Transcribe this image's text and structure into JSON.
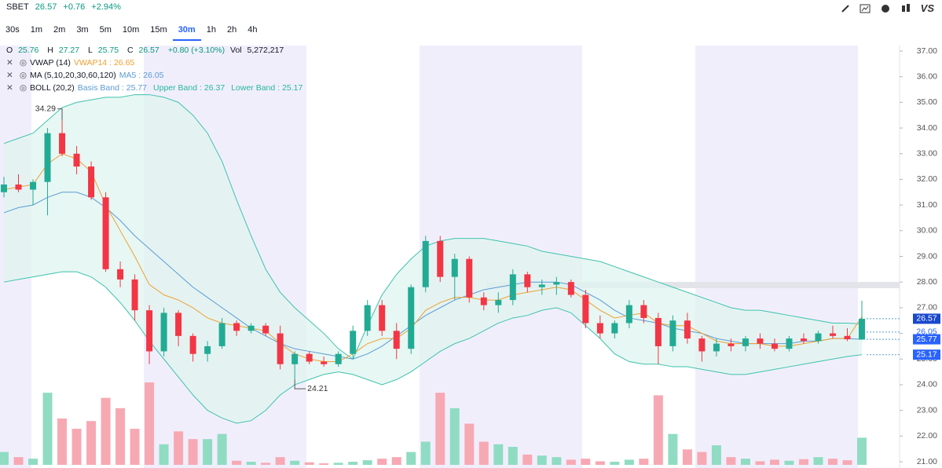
{
  "header": {
    "symbol": "SBET",
    "change": "+0.76",
    "change_pct": "+2.94%",
    "logo": "VS"
  },
  "timeframes": {
    "items": [
      "30s",
      "1m",
      "2m",
      "3m",
      "5m",
      "10m",
      "15m",
      "30m",
      "1h",
      "2h",
      "4h"
    ],
    "active": 7
  },
  "ohlc": {
    "o": "O",
    "h": "H",
    "l": "L",
    "c": "C",
    "change": "+0.80 (+3.10%)",
    "vol": "Vol",
    "vol_text": "5,272,217"
  },
  "indicators": [
    {
      "name": "VWAP (14)",
      "lines": [
        {
          "label": "VWAP14 :",
          "value": 26.65,
          "color": "#f0a030"
        }
      ]
    },
    {
      "name": "MA (5,10,20,30,60,120)",
      "lines": [
        {
          "label": "MA5 :",
          "value": 26.05,
          "color": "#5b9bd5"
        }
      ]
    },
    {
      "name": "BOLL (20,2)",
      "lines": [
        {
          "label": "Basis Band :",
          "value": 25.77,
          "color": "#5b9bd5"
        },
        {
          "label": "Upper Band :",
          "value": 26.37,
          "color": "#26b7a0"
        },
        {
          "label": "Lower Band :",
          "value": 25.17,
          "color": "#26b7a0"
        }
      ]
    }
  ],
  "chart_data": {
    "type": "candlestick",
    "ylim": [
      21,
      37
    ],
    "yticks": [
      {
        "value": 37,
        "label": "37.00"
      },
      {
        "value": 36,
        "label": "36.00"
      },
      {
        "value": 35,
        "label": "35.00"
      },
      {
        "value": 34,
        "label": "34.00"
      },
      {
        "value": 33,
        "label": "33.00"
      },
      {
        "value": 32,
        "label": "32.00"
      },
      {
        "value": 31,
        "label": "31.00"
      },
      {
        "value": 30,
        "label": "30.00"
      },
      {
        "value": 29,
        "label": "29.00"
      },
      {
        "value": 28,
        "label": "28.00"
      },
      {
        "value": 27,
        "label": "27.00"
      },
      {
        "value": 26,
        "label": "26.00"
      },
      {
        "value": 25,
        "label": "25.00"
      },
      {
        "value": 24,
        "label": "24.00"
      },
      {
        "value": 23,
        "label": "23.00"
      },
      {
        "value": 22,
        "label": "22.00"
      },
      {
        "value": 21,
        "label": "21.00"
      }
    ],
    "up_color": "#22ab94",
    "down_color": "#f23645",
    "open": [
      31.5,
      31.8,
      31.6,
      31.9,
      33.8,
      33.0,
      32.5,
      31.3,
      28.5,
      28.1,
      26.9,
      25.3,
      26.8,
      25.9,
      25.2,
      25.5,
      26.4,
      26.1,
      26.3,
      26.0,
      24.8,
      25.2,
      24.9,
      24.8,
      25.2,
      26.1,
      27.1,
      26.1,
      25.4,
      27.8,
      29.6,
      28.2,
      28.9,
      27.4,
      27.1,
      27.3,
      28.3,
      27.8,
      27.9,
      28.0,
      27.5,
      26.4,
      26.0,
      26.4,
      27.1,
      26.6,
      25.5,
      26.5,
      25.8,
      25.3,
      25.6,
      25.5,
      25.8,
      25.6,
      25.4,
      25.8,
      25.7,
      26.0,
      25.9,
      25.76
    ],
    "high": [
      32.1,
      32.2,
      32.0,
      34.0,
      34.29,
      33.3,
      32.7,
      31.5,
      28.8,
      28.3,
      27.1,
      27.0,
      26.9,
      26.0,
      25.7,
      26.6,
      26.5,
      26.4,
      26.4,
      26.3,
      25.3,
      25.3,
      25.1,
      25.3,
      26.3,
      27.3,
      27.3,
      26.4,
      27.9,
      29.8,
      29.8,
      29.1,
      29.0,
      27.6,
      27.6,
      28.5,
      28.4,
      28.1,
      28.2,
      28.1,
      27.7,
      26.7,
      26.5,
      27.3,
      27.3,
      26.8,
      26.7,
      26.8,
      25.9,
      25.8,
      25.8,
      25.9,
      26.0,
      25.8,
      25.9,
      26.0,
      26.1,
      26.3,
      26.2,
      27.27
    ],
    "low": [
      31.3,
      31.5,
      31.0,
      30.6,
      32.9,
      32.2,
      31.2,
      28.4,
      27.8,
      26.5,
      24.8,
      25.1,
      25.5,
      24.9,
      24.9,
      25.4,
      25.9,
      26.0,
      25.9,
      24.6,
      24.21,
      24.8,
      24.7,
      24.7,
      25.0,
      25.9,
      25.9,
      25.0,
      25.2,
      27.6,
      28.0,
      27.3,
      27.2,
      26.9,
      26.8,
      27.1,
      27.6,
      27.5,
      27.5,
      27.4,
      26.2,
      25.8,
      25.8,
      26.2,
      26.4,
      24.8,
      25.3,
      25.6,
      24.9,
      25.1,
      25.3,
      25.3,
      25.4,
      25.3,
      25.3,
      25.6,
      25.6,
      25.8,
      25.7,
      25.75
    ],
    "close": [
      31.8,
      31.6,
      31.9,
      33.8,
      33.0,
      32.5,
      31.3,
      28.5,
      28.1,
      26.9,
      25.3,
      26.8,
      25.9,
      25.2,
      25.5,
      26.4,
      26.1,
      26.3,
      26.0,
      24.8,
      25.2,
      24.9,
      24.8,
      25.2,
      26.1,
      27.1,
      26.1,
      25.4,
      27.8,
      29.6,
      28.2,
      28.9,
      27.4,
      27.1,
      27.3,
      28.3,
      27.8,
      27.9,
      28.0,
      27.5,
      26.4,
      26.0,
      26.4,
      27.1,
      26.6,
      25.5,
      26.5,
      25.8,
      25.3,
      25.6,
      25.5,
      25.8,
      25.6,
      25.4,
      25.8,
      25.7,
      26.0,
      25.9,
      25.77,
      26.57
    ],
    "volume": [
      2500000,
      1500000,
      1200000,
      14000000,
      9000000,
      7000000,
      8500000,
      13000000,
      11000000,
      7000000,
      16000000,
      4000000,
      6500000,
      5000000,
      5000000,
      6000000,
      800000,
      600000,
      400000,
      1500000,
      800000,
      500000,
      300000,
      400000,
      600000,
      900000,
      1200000,
      1500000,
      2500000,
      4500000,
      14000000,
      11000000,
      8000000,
      4500000,
      4000000,
      3500000,
      2000000,
      1800000,
      1500000,
      1000000,
      1200000,
      700000,
      600000,
      1000000,
      1200000,
      13500000,
      6000000,
      3000000,
      2500000,
      3800000,
      1500000,
      1200000,
      700000,
      1000000,
      800000,
      1100000,
      1500000,
      1200000,
      900000,
      5272217
    ],
    "bands": {
      "fill": "#dff4ef",
      "line_color": "#3fc2ad",
      "basis_color": "#5b9bd5",
      "upper": [
        33.4,
        33.6,
        33.8,
        34.3,
        34.8,
        35.0,
        35.1,
        35.2,
        35.2,
        35.3,
        35.3,
        35.2,
        35.0,
        34.5,
        33.8,
        32.7,
        31.2,
        29.8,
        28.5,
        27.6,
        27.0,
        26.5,
        26.0,
        25.4,
        25.0,
        26.3,
        27.5,
        28.3,
        28.9,
        29.4,
        29.6,
        29.7,
        29.7,
        29.7,
        29.6,
        29.5,
        29.4,
        29.2,
        29.1,
        29.0,
        28.9,
        28.8,
        28.6,
        28.4,
        28.2,
        28.0,
        27.8,
        27.6,
        27.4,
        27.2,
        27.0,
        26.9,
        26.9,
        26.8,
        26.7,
        26.6,
        26.5,
        26.4,
        26.4,
        26.37
      ],
      "basis": [
        30.7,
        30.9,
        31.0,
        31.3,
        31.5,
        31.5,
        31.3,
        30.9,
        30.4,
        29.8,
        29.3,
        28.8,
        28.3,
        27.8,
        27.4,
        27.0,
        26.6,
        26.2,
        25.9,
        25.6,
        25.4,
        25.3,
        25.2,
        25.1,
        25.0,
        25.2,
        25.5,
        25.9,
        26.3,
        26.7,
        27.0,
        27.3,
        27.5,
        27.7,
        27.8,
        27.9,
        28.0,
        28.0,
        28.0,
        27.9,
        27.6,
        27.3,
        26.9,
        26.6,
        26.5,
        26.4,
        26.2,
        26.1,
        26.0,
        25.8,
        25.7,
        25.6,
        25.6,
        25.6,
        25.6,
        25.7,
        25.7,
        25.8,
        25.8,
        25.77
      ],
      "lower": [
        28.0,
        28.1,
        28.2,
        28.3,
        28.4,
        28.4,
        28.2,
        27.8,
        27.2,
        26.5,
        25.7,
        25.0,
        24.3,
        23.6,
        23.0,
        22.7,
        22.5,
        22.6,
        23.0,
        23.6,
        24.0,
        24.2,
        24.4,
        24.5,
        24.4,
        24.2,
        24.0,
        24.2,
        24.5,
        24.9,
        25.3,
        25.6,
        25.8,
        26.1,
        26.4,
        26.6,
        26.7,
        26.9,
        27.0,
        26.8,
        26.3,
        25.8,
        25.2,
        24.9,
        24.8,
        24.8,
        24.7,
        24.7,
        24.6,
        24.5,
        24.4,
        24.4,
        24.5,
        24.6,
        24.7,
        24.8,
        24.9,
        25.0,
        25.1,
        25.17
      ]
    },
    "vwap": {
      "color": "#f0a030",
      "values": [
        31.6,
        31.7,
        31.8,
        32.6,
        33.0,
        32.8,
        32.3,
        31.0,
        30.0,
        29.0,
        27.9,
        27.5,
        27.3,
        27.0,
        26.6,
        26.4,
        26.3,
        26.2,
        26.1,
        25.6,
        25.2,
        25.0,
        24.9,
        24.9,
        25.2,
        25.6,
        25.8,
        25.8,
        26.2,
        26.9,
        27.2,
        27.4,
        27.4,
        27.3,
        27.3,
        27.5,
        27.6,
        27.7,
        27.8,
        27.7,
        27.3,
        26.9,
        26.6,
        26.7,
        26.8,
        26.4,
        26.3,
        26.3,
        26.0,
        25.7,
        25.6,
        25.6,
        25.6,
        25.5,
        25.5,
        25.6,
        25.7,
        25.8,
        25.8,
        26.65
      ]
    }
  }
}
